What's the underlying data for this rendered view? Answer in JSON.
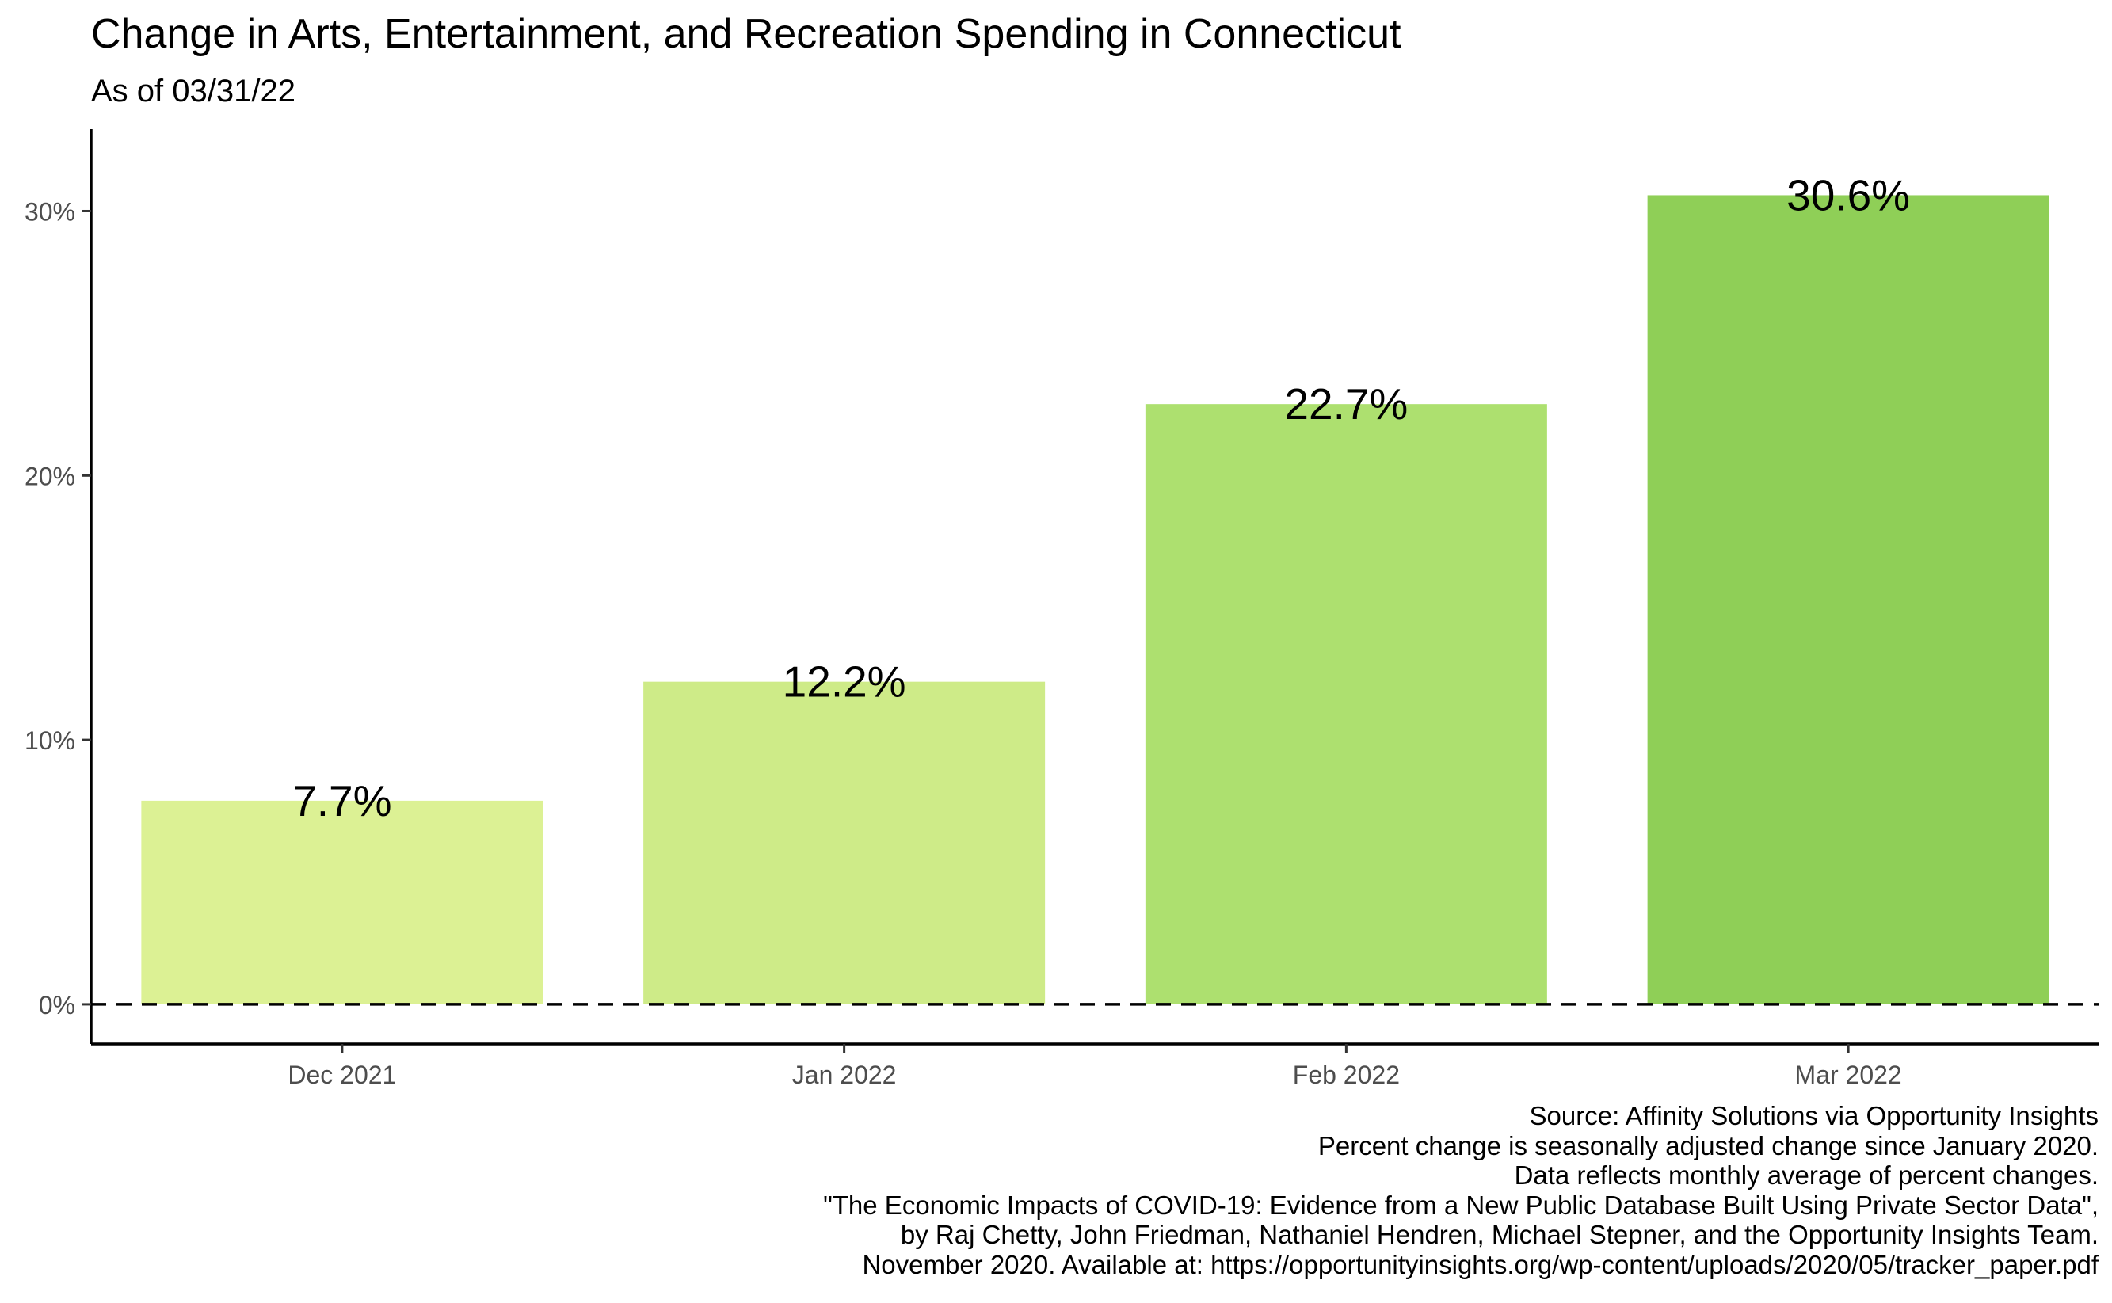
{
  "chart_data": {
    "type": "bar",
    "title": "Change in Arts, Entertainment, and Recreation Spending in Connecticut",
    "subtitle": "As of 03/31/22",
    "xlabel": "",
    "ylabel": "",
    "categories": [
      "Dec 2021",
      "Jan 2022",
      "Feb 2022",
      "Mar 2022"
    ],
    "values": [
      7.7,
      12.2,
      22.7,
      30.6
    ],
    "data_labels": [
      "7.7%",
      "12.2%",
      "22.7%",
      "30.6%"
    ],
    "bar_colors": [
      "#dcf194",
      "#ceeb88",
      "#ade06f",
      "#8fcf57"
    ],
    "ylim": [
      -1.5,
      33.1
    ],
    "y_ticks": [
      0,
      10,
      20,
      30
    ],
    "y_tick_labels": [
      "0%",
      "10%",
      "20%",
      "30%"
    ],
    "reference_line": {
      "y": 0,
      "style": "dashed"
    },
    "grid": false,
    "legend": "none",
    "caption_lines": [
      "Source: Affinity Solutions via Opportunity Insights",
      "Percent change is seasonally adjusted change since January 2020.",
      "Data reflects monthly average of percent changes.",
      "\"The Economic Impacts of COVID-19: Evidence from a New Public Database Built Using Private Sector Data\",",
      "by Raj Chetty, John Friedman, Nathaniel Hendren, Michael Stepner, and the Opportunity Insights Team.",
      "November 2020. Available at: https://opportunityinsights.org/wp-content/uploads/2020/05/tracker_paper.pdf"
    ]
  }
}
